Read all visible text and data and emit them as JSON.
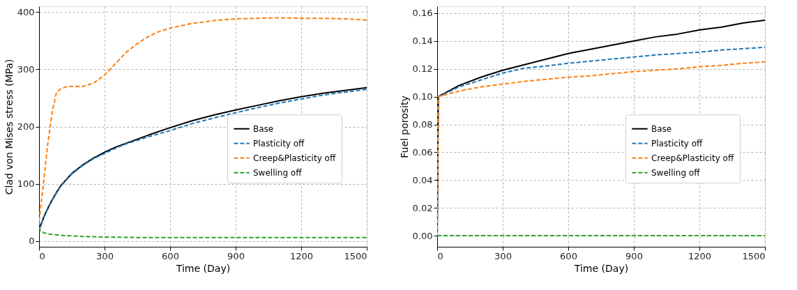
{
  "chart_data": [
    {
      "type": "line",
      "xlabel": "Time (Day)",
      "ylabel": "Clad von Mises stress (MPa)",
      "xlim": [
        0,
        1500
      ],
      "xticks": [
        0,
        300,
        600,
        900,
        1200,
        1500
      ],
      "ylim": [
        -10,
        410
      ],
      "yticks": [
        0,
        100,
        200,
        300,
        400
      ],
      "grid": true,
      "legend": "center right",
      "series": [
        {
          "name": "Base",
          "color": "#000000",
          "line_style": "solid",
          "x": [
            0,
            25,
            50,
            75,
            100,
            150,
            200,
            250,
            300,
            350,
            400,
            500,
            600,
            700,
            800,
            900,
            1000,
            1100,
            1200,
            1300,
            1400,
            1500
          ],
          "values": [
            20,
            45,
            65,
            82,
            97,
            118,
            133,
            145,
            155,
            164,
            171,
            185,
            198,
            210,
            220,
            229,
            237,
            245,
            252,
            258,
            263,
            268
          ]
        },
        {
          "name": "Plasticity off",
          "color": "#1f77b4",
          "line_style": "dashed",
          "x": [
            0,
            25,
            50,
            75,
            100,
            150,
            200,
            250,
            300,
            350,
            400,
            500,
            600,
            700,
            800,
            900,
            1000,
            1100,
            1200,
            1300,
            1400,
            1500
          ],
          "values": [
            20,
            44,
            64,
            81,
            96,
            117,
            132,
            144,
            153,
            162,
            170,
            182,
            193,
            205,
            215,
            224,
            233,
            241,
            248,
            255,
            260,
            265
          ]
        },
        {
          "name": "Creep&Plasticity off",
          "color": "#ff7f0e",
          "line_style": "dashed",
          "x": [
            0,
            20,
            40,
            60,
            80,
            100,
            130,
            200,
            250,
            300,
            350,
            400,
            450,
            500,
            550,
            600,
            700,
            800,
            900,
            1000,
            1100,
            1200,
            1300,
            1400,
            1500
          ],
          "values": [
            35,
            100,
            170,
            225,
            260,
            266,
            270,
            270,
            276,
            290,
            310,
            330,
            345,
            357,
            366,
            372,
            380,
            385,
            388,
            389,
            390,
            389,
            389,
            388,
            386
          ]
        },
        {
          "name": "Swelling off",
          "color": "#2ca02c",
          "line_style": "dashed",
          "x": [
            0,
            5,
            25,
            50,
            100,
            200,
            300,
            500,
            900,
            1500
          ],
          "values": [
            35,
            18,
            14,
            12,
            10,
            8,
            7,
            6,
            6,
            6
          ]
        }
      ]
    },
    {
      "type": "line",
      "xlabel": "Time (Day)",
      "ylabel": "Fuel porosity",
      "xlim": [
        0,
        1500
      ],
      "xticks": [
        0,
        300,
        600,
        900,
        1200,
        1500
      ],
      "ylim": [
        -0.008,
        0.165
      ],
      "yticks": [
        {
          "value": 0,
          "label": "0.00"
        },
        {
          "value": 0.02,
          "label": "0.02"
        },
        {
          "value": 0.04,
          "label": "0.04"
        },
        {
          "value": 0.06,
          "label": "0.06"
        },
        {
          "value": 0.08,
          "label": "0.08"
        },
        {
          "value": 0.1,
          "label": "0.10"
        },
        {
          "value": 0.12,
          "label": "0.12"
        },
        {
          "value": 0.14,
          "label": "0.14"
        },
        {
          "value": 0.16,
          "label": "0.16"
        }
      ],
      "grid": true,
      "legend": "center right",
      "series": [
        {
          "name": "Base",
          "color": "#000000",
          "line_style": "solid",
          "x": [
            0,
            5,
            100,
            200,
            300,
            400,
            500,
            600,
            700,
            800,
            900,
            1000,
            1100,
            1200,
            1300,
            1400,
            1500
          ],
          "values": [
            0,
            0.1,
            0.108,
            0.114,
            0.119,
            0.123,
            0.127,
            0.131,
            0.134,
            0.137,
            0.14,
            0.143,
            0.145,
            0.148,
            0.15,
            0.153,
            0.155
          ]
        },
        {
          "name": "Plasticity off",
          "color": "#1f77b4",
          "line_style": "dashed",
          "x": [
            0,
            5,
            100,
            200,
            300,
            400,
            500,
            600,
            700,
            800,
            900,
            1000,
            1100,
            1200,
            1300,
            1400,
            1500
          ],
          "values": [
            0,
            0.1,
            0.107,
            0.112,
            0.117,
            0.1205,
            0.122,
            0.124,
            0.1255,
            0.127,
            0.1285,
            0.13,
            0.131,
            0.132,
            0.1335,
            0.1345,
            0.1355
          ]
        },
        {
          "name": "Creep&Plasticity off",
          "color": "#ff7f0e",
          "line_style": "dashed",
          "x": [
            0,
            5,
            100,
            200,
            300,
            400,
            500,
            600,
            700,
            800,
            900,
            1000,
            1100,
            1200,
            1300,
            1400,
            1500
          ],
          "values": [
            0,
            0.1,
            0.104,
            0.107,
            0.109,
            0.111,
            0.1125,
            0.114,
            0.115,
            0.1165,
            0.118,
            0.119,
            0.12,
            0.1215,
            0.1225,
            0.124,
            0.125
          ]
        },
        {
          "name": "Swelling off",
          "color": "#2ca02c",
          "line_style": "dashed",
          "x": [
            0,
            1500
          ],
          "values": [
            0,
            0
          ]
        }
      ]
    }
  ]
}
